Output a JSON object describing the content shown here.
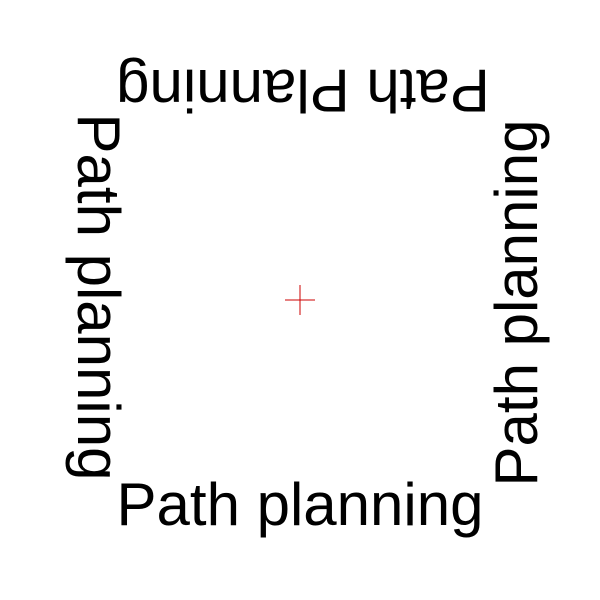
{
  "labels": {
    "top": "Path Planning",
    "bottom": "Path planning",
    "left": "Path planning",
    "right": "Path planning"
  },
  "colors": {
    "background": "#ffffff",
    "text": "#000000",
    "crosshair": "#cc0000"
  },
  "crosshair_icon": "crosshair-icon"
}
